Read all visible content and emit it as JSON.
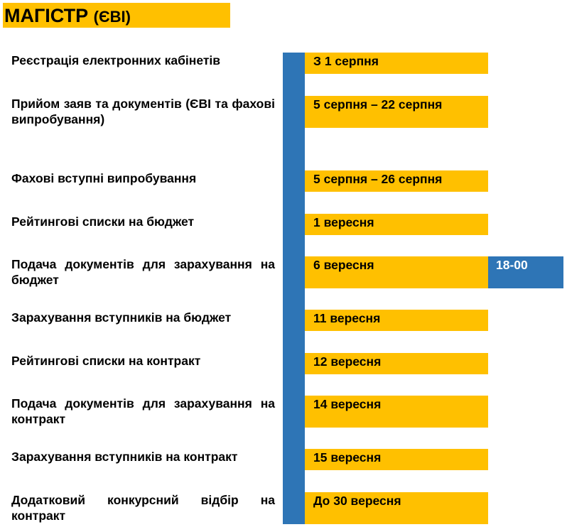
{
  "header": {
    "title_main": "МАГІСТР",
    "title_sub": "(ЄВІ)"
  },
  "colors": {
    "accent_yellow": "#ffc000",
    "accent_blue": "#2e75b6"
  },
  "rows": [
    {
      "label": "Реєстрація електронних кабінетів",
      "date": "З 1 серпня"
    },
    {
      "label": "Прийом заяв та документів (ЄВІ та фахові випробування)",
      "date": "5 серпня – 22 серпня"
    },
    {
      "label": "Фахові вступні випробування",
      "date": "5 серпня – 26 серпня"
    },
    {
      "label": "Рейтингові списки на бюджет",
      "date": "1 вересня"
    },
    {
      "label": "Подача документів для зарахування на бюджет",
      "date": "6 вересня",
      "time": "18-00"
    },
    {
      "label": "Зарахування вступників на бюджет",
      "date": "11 вересня"
    },
    {
      "label": "Рейтингові списки на контракт",
      "date": "12 вересня"
    },
    {
      "label": "Подача документів для зарахування на контракт",
      "date": "14 вересня"
    },
    {
      "label": "Зарахування вступників на контракт",
      "date": "15 вересня"
    },
    {
      "label": "Додатковий конкурсний відбір на контракт",
      "date": "До 30 вересня"
    }
  ]
}
